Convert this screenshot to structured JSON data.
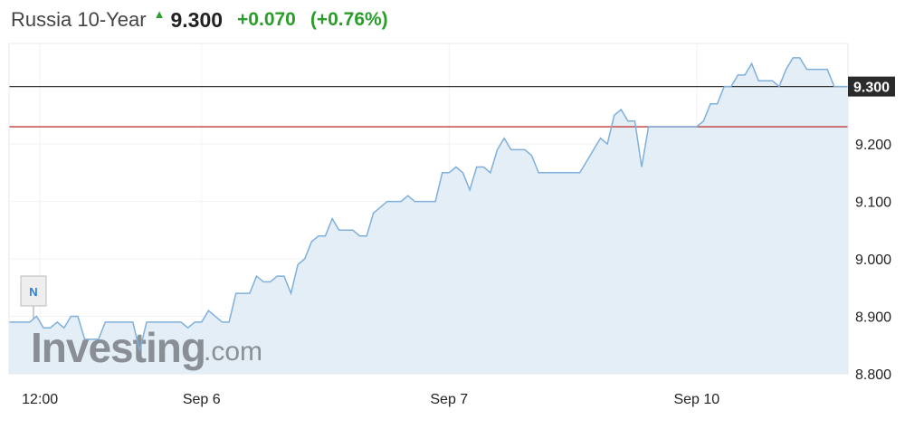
{
  "header": {
    "title": "Russia 10-Year",
    "arrow_icon": "up-arrow",
    "price": "9.300",
    "change": "+0.070",
    "change_pct": "(+0.76%)"
  },
  "colors": {
    "line": "#7fb0dc",
    "fill": "#e4eef6",
    "price_line": "#333333",
    "prev_close_line": "#c23b3b",
    "up": "#2a9d2a"
  },
  "watermark": "Investing.com",
  "news_marker": "N",
  "chart_data": {
    "type": "area",
    "title": "",
    "xlabel": "",
    "ylabel": "",
    "ylim": [
      8.8,
      9.375
    ],
    "xlim": [
      0,
      122
    ],
    "y_ticks": [
      "8.800",
      "8.900",
      "9.000",
      "9.100",
      "9.200"
    ],
    "y_tick_values": [
      8.8,
      8.9,
      9.0,
      9.1,
      9.2
    ],
    "x_ticks": [
      {
        "label": "12:00",
        "at": 4.5
      },
      {
        "label": "Sep 6",
        "at": 28
      },
      {
        "label": "Sep 7",
        "at": 64
      },
      {
        "label": "Sep 10",
        "at": 100
      }
    ],
    "current_value": 9.3,
    "current_label": "9.300",
    "prev_close": 9.23,
    "grid": true,
    "points": [
      [
        0,
        8.89
      ],
      [
        3,
        8.89
      ],
      [
        4,
        8.9
      ],
      [
        5,
        8.88
      ],
      [
        6,
        8.88
      ],
      [
        7,
        8.89
      ],
      [
        8,
        8.88
      ],
      [
        9,
        8.9
      ],
      [
        10,
        8.9
      ],
      [
        11,
        8.86
      ],
      [
        13,
        8.86
      ],
      [
        14,
        8.89
      ],
      [
        18,
        8.89
      ],
      [
        19,
        8.84
      ],
      [
        20,
        8.89
      ],
      [
        25,
        8.89
      ],
      [
        26,
        8.88
      ],
      [
        27,
        8.89
      ],
      [
        28,
        8.89
      ],
      [
        29,
        8.91
      ],
      [
        31,
        8.89
      ],
      [
        32,
        8.89
      ],
      [
        33,
        8.94
      ],
      [
        35,
        8.94
      ],
      [
        36,
        8.97
      ],
      [
        37,
        8.96
      ],
      [
        38,
        8.96
      ],
      [
        39,
        8.97
      ],
      [
        40,
        8.97
      ],
      [
        41,
        8.94
      ],
      [
        42,
        8.99
      ],
      [
        43,
        9.0
      ],
      [
        44,
        9.03
      ],
      [
        45,
        9.04
      ],
      [
        46,
        9.04
      ],
      [
        47,
        9.07
      ],
      [
        48,
        9.05
      ],
      [
        50,
        9.05
      ],
      [
        51,
        9.04
      ],
      [
        52,
        9.04
      ],
      [
        53,
        9.08
      ],
      [
        55,
        9.1
      ],
      [
        57,
        9.1
      ],
      [
        58,
        9.11
      ],
      [
        59,
        9.1
      ],
      [
        62,
        9.1
      ],
      [
        63,
        9.15
      ],
      [
        64,
        9.15
      ],
      [
        65,
        9.16
      ],
      [
        66,
        9.15
      ],
      [
        67,
        9.12
      ],
      [
        68,
        9.16
      ],
      [
        69,
        9.16
      ],
      [
        70,
        9.15
      ],
      [
        71,
        9.19
      ],
      [
        72,
        9.21
      ],
      [
        73,
        9.19
      ],
      [
        75,
        9.19
      ],
      [
        76,
        9.18
      ],
      [
        77,
        9.15
      ],
      [
        83,
        9.15
      ],
      [
        84,
        9.17
      ],
      [
        85,
        9.19
      ],
      [
        86,
        9.21
      ],
      [
        87,
        9.2
      ],
      [
        88,
        9.25
      ],
      [
        89,
        9.26
      ],
      [
        90,
        9.24
      ],
      [
        91,
        9.24
      ],
      [
        92,
        9.16
      ],
      [
        93,
        9.23
      ],
      [
        100,
        9.23
      ],
      [
        101,
        9.24
      ],
      [
        102,
        9.27
      ],
      [
        103,
        9.27
      ],
      [
        104,
        9.3
      ],
      [
        105,
        9.3
      ],
      [
        106,
        9.32
      ],
      [
        107,
        9.32
      ],
      [
        108,
        9.34
      ],
      [
        109,
        9.31
      ],
      [
        111,
        9.31
      ],
      [
        112,
        9.3
      ],
      [
        113,
        9.33
      ],
      [
        114,
        9.35
      ],
      [
        115,
        9.35
      ],
      [
        116,
        9.33
      ],
      [
        119,
        9.33
      ],
      [
        120,
        9.3
      ],
      [
        122,
        9.3
      ]
    ]
  }
}
